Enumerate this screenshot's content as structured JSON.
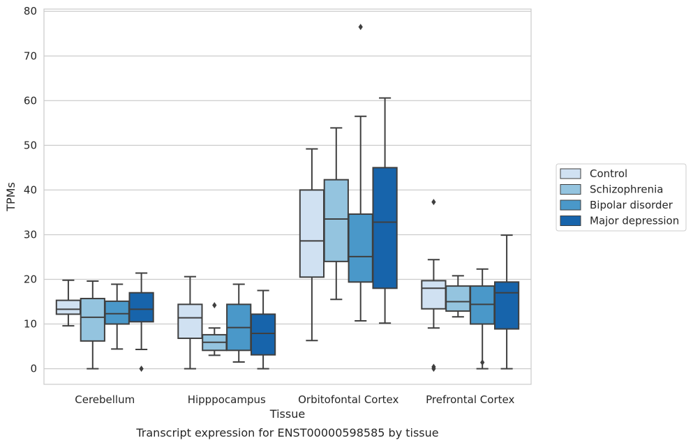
{
  "caption": "Transcript expression for ENST00000598585 by tissue",
  "chart_data": {
    "type": "boxplot",
    "xlabel": "Tissue",
    "ylabel": "TPMs",
    "ylim": [
      -3.5,
      80.5
    ],
    "yticks": [
      0,
      10,
      20,
      30,
      40,
      50,
      60,
      70,
      80
    ],
    "grid": true,
    "legend_position": "right",
    "categories": [
      "Cerebellum",
      "Hipppocampus",
      "Orbitofontal Cortex",
      "Prefrontal Cortex"
    ],
    "series": [
      {
        "name": "Control",
        "color": "#d0e1f2",
        "boxes": [
          {
            "whislo": 9.6,
            "q1": 12.2,
            "med": 13.3,
            "q3": 15.3,
            "whishi": 19.8,
            "fliers": []
          },
          {
            "whislo": 0.0,
            "q1": 6.8,
            "med": 11.4,
            "q3": 14.4,
            "whishi": 20.6,
            "fliers": []
          },
          {
            "whislo": 6.3,
            "q1": 20.5,
            "med": 28.6,
            "q3": 40.0,
            "whishi": 49.2,
            "fliers": []
          },
          {
            "whislo": 9.1,
            "q1": 13.4,
            "med": 18.0,
            "q3": 19.7,
            "whishi": 24.4,
            "fliers": [
              37.3,
              0.4,
              0.0
            ]
          }
        ]
      },
      {
        "name": "Schizophrenia",
        "color": "#94c4df",
        "boxes": [
          {
            "whislo": 0.0,
            "q1": 6.2,
            "med": 11.5,
            "q3": 15.7,
            "whishi": 19.6,
            "fliers": []
          },
          {
            "whislo": 3.0,
            "q1": 4.1,
            "med": 5.9,
            "q3": 7.6,
            "whishi": 9.1,
            "fliers": [
              14.2
            ]
          },
          {
            "whislo": 15.5,
            "q1": 24.0,
            "med": 33.5,
            "q3": 42.3,
            "whishi": 53.9,
            "fliers": []
          },
          {
            "whislo": 11.6,
            "q1": 12.9,
            "med": 15.0,
            "q3": 18.5,
            "whishi": 20.8,
            "fliers": []
          }
        ]
      },
      {
        "name": "Bipolar disorder",
        "color": "#4a98c9",
        "boxes": [
          {
            "whislo": 4.4,
            "q1": 10.0,
            "med": 12.3,
            "q3": 15.1,
            "whishi": 18.9,
            "fliers": []
          },
          {
            "whislo": 1.5,
            "q1": 4.1,
            "med": 9.2,
            "q3": 14.4,
            "whishi": 18.9,
            "fliers": []
          },
          {
            "whislo": 10.7,
            "q1": 19.4,
            "med": 25.1,
            "q3": 34.6,
            "whishi": 56.5,
            "fliers": [
              76.5
            ]
          },
          {
            "whislo": 0.0,
            "q1": 10.0,
            "med": 14.4,
            "q3": 18.5,
            "whishi": 22.3,
            "fliers": [
              1.4
            ]
          }
        ]
      },
      {
        "name": "Major depression",
        "color": "#1764ab",
        "boxes": [
          {
            "whislo": 4.3,
            "q1": 10.5,
            "med": 13.3,
            "q3": 17.0,
            "whishi": 21.4,
            "fliers": [
              0.0
            ]
          },
          {
            "whislo": 0.0,
            "q1": 3.1,
            "med": 7.9,
            "q3": 12.2,
            "whishi": 17.5,
            "fliers": []
          },
          {
            "whislo": 10.2,
            "q1": 18.0,
            "med": 32.8,
            "q3": 45.0,
            "whishi": 60.6,
            "fliers": []
          },
          {
            "whislo": 0.0,
            "q1": 8.9,
            "med": 17.0,
            "q3": 19.4,
            "whishi": 29.9,
            "fliers": []
          }
        ]
      }
    ]
  }
}
